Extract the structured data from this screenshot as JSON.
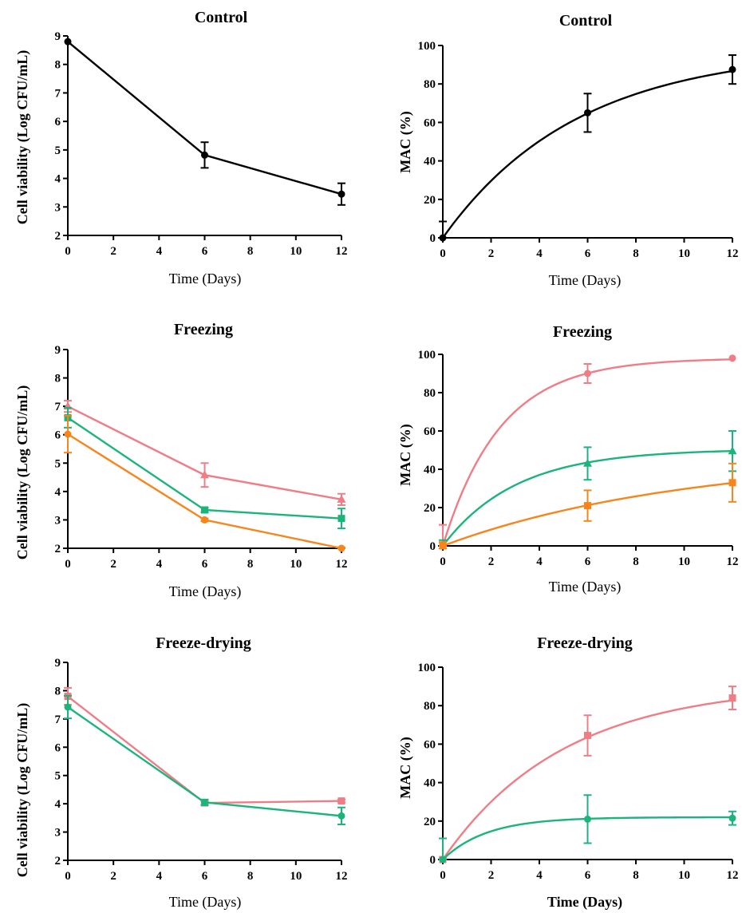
{
  "colors": {
    "pink": "#f07d86",
    "green": "#1bb57c",
    "orange": "#f7851c",
    "black": "#000000"
  },
  "chart_data": [
    {
      "id": "control-viability",
      "type": "line",
      "title": "Control",
      "xlabel": "Time (Days)",
      "ylabel": "Cell viability (Log CFU/mL)",
      "xlim": [
        0,
        12
      ],
      "ylim": [
        2,
        9
      ],
      "xticks": [
        "0",
        "2",
        "4",
        "6",
        "8",
        "10",
        "12"
      ],
      "yticks": [
        "2",
        "3",
        "4",
        "5",
        "6",
        "7",
        "8",
        "9"
      ],
      "series": [
        {
          "color": "#000000",
          "marker": "circle",
          "curve": "linear",
          "x": [
            0,
            6,
            12
          ],
          "y": [
            8.8,
            4.82,
            3.45
          ],
          "err": [
            0,
            0.45,
            0.38
          ]
        }
      ]
    },
    {
      "id": "control-mac",
      "type": "line",
      "title": "Control",
      "xlabel": "Time (Days)",
      "ylabel": "MAC (%)",
      "xlim": [
        0,
        12
      ],
      "ylim": [
        0,
        100
      ],
      "xticks": [
        "0",
        "2",
        "4",
        "6",
        "8",
        "10",
        "12"
      ],
      "yticks": [
        "0",
        "20",
        "40",
        "60",
        "80",
        "100"
      ],
      "series": [
        {
          "color": "#000000",
          "marker": "circle",
          "curve": "smooth",
          "fit_plateau": 98,
          "fit_rate": 0.18,
          "x": [
            0,
            6,
            12
          ],
          "y": [
            0,
            65,
            87.5
          ],
          "err": [
            8.5,
            10,
            7.5
          ]
        }
      ]
    },
    {
      "id": "freezing-viability",
      "type": "line",
      "title": "Freezing",
      "xlabel": "Time (Days)",
      "ylabel": "Cell viability (Log CFU/mL)",
      "xlim": [
        0,
        12
      ],
      "ylim": [
        2,
        9
      ],
      "xticks": [
        "0",
        "2",
        "4",
        "6",
        "8",
        "10",
        "12"
      ],
      "yticks": [
        "2",
        "3",
        "4",
        "5",
        "6",
        "7",
        "8",
        "9"
      ],
      "series": [
        {
          "color": "#f07d86",
          "marker": "triangle",
          "curve": "linear",
          "x": [
            0,
            6,
            12
          ],
          "y": [
            7.0,
            4.58,
            3.72
          ],
          "err": [
            0.2,
            0.42,
            0.2
          ]
        },
        {
          "color": "#1bb57c",
          "marker": "square",
          "curve": "linear",
          "x": [
            0,
            6,
            12
          ],
          "y": [
            6.6,
            3.35,
            3.05
          ],
          "err": [
            0.35,
            0.08,
            0.35
          ]
        },
        {
          "color": "#f7851c",
          "marker": "circle",
          "curve": "linear",
          "x": [
            0,
            6,
            12
          ],
          "y": [
            6.02,
            3.0,
            2.0
          ],
          "err": [
            0.65,
            0.05,
            0.03
          ]
        }
      ]
    },
    {
      "id": "freezing-mac",
      "type": "line",
      "title": "Freezing",
      "xlabel": "Time (Days)",
      "ylabel": "MAC (%)",
      "xlim": [
        0,
        12
      ],
      "ylim": [
        0,
        100
      ],
      "xticks": [
        "0",
        "2",
        "4",
        "6",
        "8",
        "10",
        "12"
      ],
      "yticks": [
        "0",
        "20",
        "40",
        "60",
        "80",
        "100"
      ],
      "series": [
        {
          "color": "#f07d86",
          "marker": "circle",
          "curve": "smooth",
          "fit_plateau": 98,
          "fit_rate": 0.42,
          "x": [
            0,
            6,
            12
          ],
          "y": [
            0,
            90,
            98
          ],
          "err": [
            11,
            5,
            0
          ]
        },
        {
          "color": "#1bb57c",
          "marker": "triangle",
          "curve": "smooth",
          "fit_plateau": 50.5,
          "fit_rate": 0.33,
          "x": [
            0,
            6,
            12
          ],
          "y": [
            0,
            43,
            49.5
          ],
          "err": [
            3,
            8.5,
            10.5
          ]
        },
        {
          "color": "#f7851c",
          "marker": "square",
          "curve": "smooth",
          "fit_plateau": 47,
          "fit_rate": 0.1,
          "x": [
            0,
            6,
            12
          ],
          "y": [
            0,
            21,
            33
          ],
          "err": [
            2,
            8,
            10
          ]
        }
      ]
    },
    {
      "id": "freeze-drying-viability",
      "type": "line",
      "title": "Freeze-drying",
      "xlabel": "Time (Days)",
      "ylabel": "Cell viability (Log CFU/mL)",
      "xlim": [
        0,
        12
      ],
      "ylim": [
        2,
        9
      ],
      "xticks": [
        "0",
        "2",
        "4",
        "6",
        "8",
        "10",
        "12"
      ],
      "yticks": [
        "2",
        "3",
        "4",
        "5",
        "6",
        "7",
        "8",
        "9"
      ],
      "series": [
        {
          "color": "#f07d86",
          "marker": "square",
          "curve": "linear",
          "x": [
            0,
            6,
            12
          ],
          "y": [
            7.8,
            4.03,
            4.1
          ],
          "err": [
            0.3,
            0.05,
            0.05
          ]
        },
        {
          "color": "#1bb57c",
          "marker": "circle",
          "curve": "linear",
          "x": [
            0,
            6,
            12
          ],
          "y": [
            7.42,
            4.05,
            3.57
          ],
          "err": [
            0.4,
            0.1,
            0.3
          ]
        }
      ]
    },
    {
      "id": "freeze-drying-mac",
      "type": "line",
      "title": "Freeze-drying",
      "xlabel": "Time (Days)",
      "ylabel": "MAC (%)",
      "xlim": [
        0,
        12
      ],
      "ylim": [
        0,
        100
      ],
      "xticks": [
        "0",
        "2",
        "4",
        "6",
        "8",
        "10",
        "12"
      ],
      "yticks": [
        "0",
        "20",
        "40",
        "60",
        "80",
        "100"
      ],
      "series": [
        {
          "color": "#f07d86",
          "marker": "square",
          "curve": "smooth",
          "fit_plateau": 91,
          "fit_rate": 0.2,
          "x": [
            0,
            6,
            12
          ],
          "y": [
            0,
            64.5,
            84
          ],
          "err": [
            1,
            10.5,
            6
          ]
        },
        {
          "color": "#1bb57c",
          "marker": "circle",
          "curve": "smooth",
          "fit_plateau": 22,
          "fit_rate": 0.55,
          "x": [
            0,
            6,
            12
          ],
          "y": [
            0,
            21,
            21.5
          ],
          "err": [
            11,
            12.5,
            3.5
          ]
        }
      ]
    }
  ]
}
